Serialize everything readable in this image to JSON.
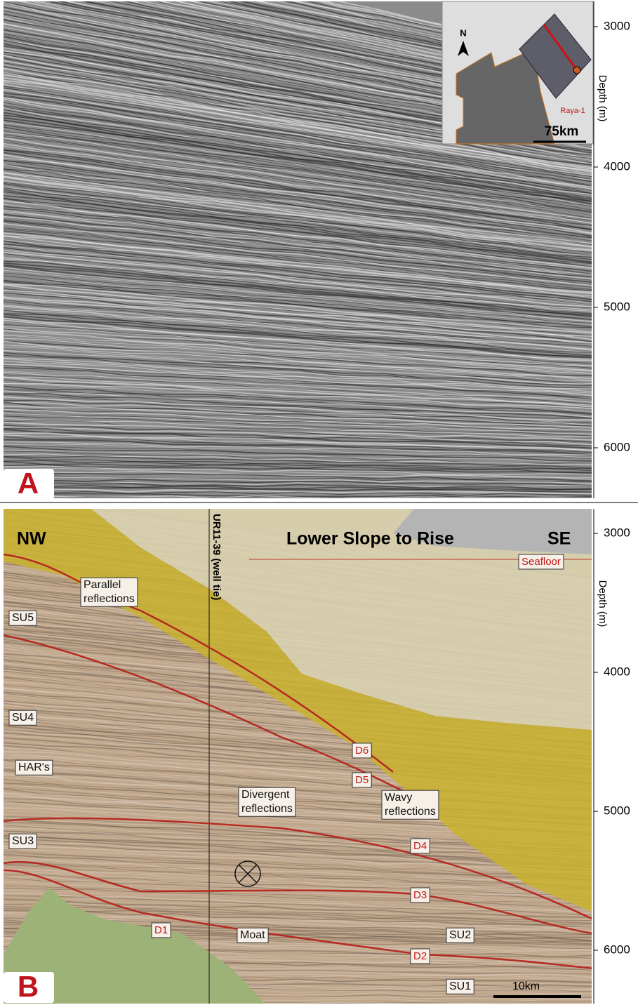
{
  "panel_a": {
    "label": "A",
    "depth_axis": {
      "label": "Depth (m)",
      "lim": [
        2820,
        6360
      ],
      "ticks": [
        3000,
        4000,
        5000,
        6000
      ]
    },
    "inset": {
      "north": "N",
      "well": "Raya-1",
      "scale": "75km"
    }
  },
  "panel_b": {
    "label": "B",
    "depth_axis": {
      "label": "Depth (m)",
      "lim": [
        2823,
        6384
      ],
      "ticks": [
        3000,
        4000,
        5000,
        6000
      ]
    },
    "titles": {
      "left": "NW",
      "center": "Lower Slope to Rise",
      "right": "SE"
    },
    "well_tie": "UR11-39 (well tie)",
    "horizons": [
      "Seafloor",
      "D6",
      "D5",
      "D4",
      "D3",
      "D2",
      "D1"
    ],
    "units": [
      "SU5",
      "SU4",
      "SU3",
      "SU2",
      "SU1"
    ],
    "annotations": [
      {
        "lines": [
          "Parallel",
          "reflections"
        ]
      },
      {
        "lines": [
          "HAR's"
        ]
      },
      {
        "lines": [
          "Divergent",
          "reflections"
        ]
      },
      {
        "lines": [
          "Wavy",
          "reflections"
        ]
      },
      {
        "lines": [
          "Moat"
        ]
      }
    ],
    "scale_bar": "10km"
  }
}
